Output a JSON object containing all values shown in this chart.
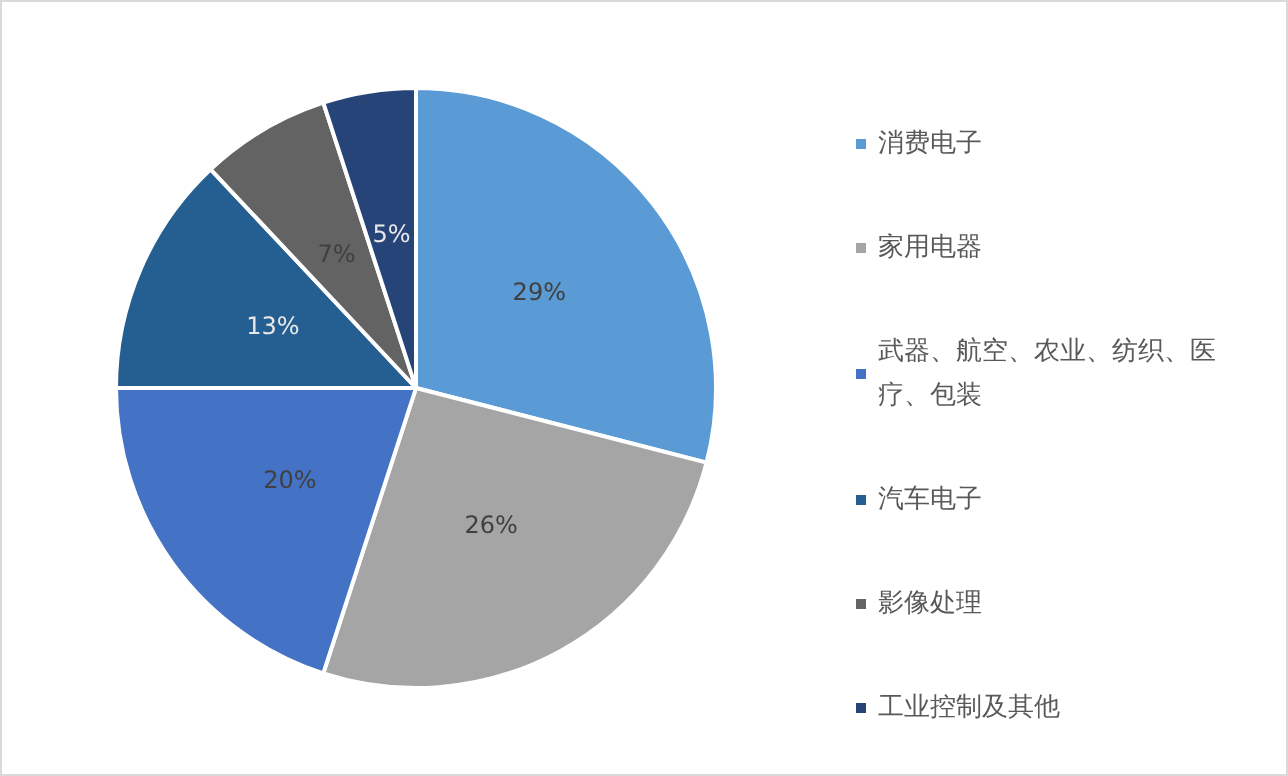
{
  "chart_data": {
    "type": "pie",
    "categories": [
      "消费电子",
      "家用电器",
      "武器、航空、农业、纺织、医疗、包装",
      "汽车电子",
      "影像处理",
      "工业控制及其他"
    ],
    "values": [
      29,
      26,
      20,
      13,
      7,
      5
    ],
    "value_labels": [
      "29%",
      "26%",
      "20%",
      "13%",
      "7%",
      "5%"
    ],
    "colors": [
      "#5b9bd5",
      "#a5a5a5",
      "#4472c4",
      "#255e91",
      "#636363",
      "#264478"
    ],
    "legend": "right"
  }
}
